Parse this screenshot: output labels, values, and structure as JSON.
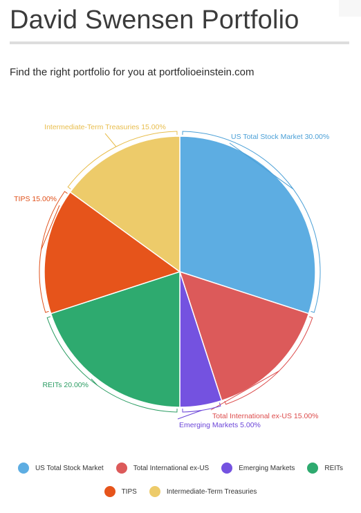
{
  "page": {
    "title": "David Swensen Portfolio",
    "subtitle": "Find the right portfolio for you at portfolioeinstein.com"
  },
  "chart_data": {
    "type": "pie",
    "title": "",
    "categories": [
      "US Total Stock Market",
      "Total International ex-US",
      "Emerging Markets",
      "REITs",
      "TIPS",
      "Intermediate-Term Treasuries"
    ],
    "values": [
      30,
      15,
      5,
      20,
      15,
      15
    ],
    "labels": [
      "US Total Stock Market 30.00%",
      "Total International ex-US 15.00%",
      "Emerging Markets 5.00%",
      "REITs 20.00%",
      "TIPS 15.00%",
      "Intermediate-Term Treasuries 15.00%"
    ],
    "colors": [
      "#5dade2",
      "#dc5a5a",
      "#7452e0",
      "#2eaa6f",
      "#e6541b",
      "#edcb6a"
    ],
    "label_colors": [
      "#4a9fd6",
      "#dc4a4a",
      "#6a44d8",
      "#2a9c62",
      "#e0501a",
      "#e8bd4c"
    ],
    "legend_placement": "bottom",
    "start_angle": "12 o'clock, clockwise"
  }
}
